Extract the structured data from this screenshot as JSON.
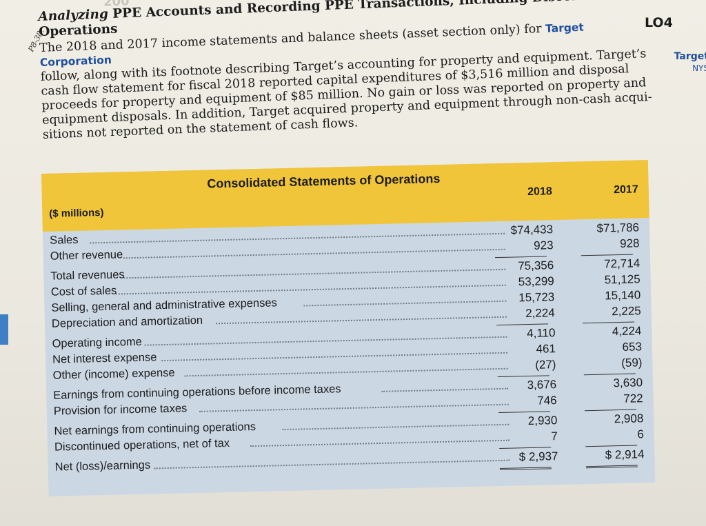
{
  "problem": {
    "number": "P8-38.",
    "heading_italic": "Analyzing",
    "heading_rest": "PPE Accounts and Recording PPE Transactions, Including Discontinued Operations",
    "lines": [
      "The 2018 and 2017 income statements and balance sheets (asset section only) for",
      "follow, along with its footnote describing Target’s accounting for property and equipment. Target’s",
      "cash flow statement for fiscal 2018 reported capital expenditures of $3,516 million and disposal",
      "proceeds for property and equipment of $85 million. No gain or loss was reported on property and",
      "equipment disposals. In addition, Target acquired property and equipment through non-cash acqui-",
      "sitions not reported on the statement of cash flows."
    ],
    "company": "Target Corporation",
    "learning_objective": "LO4",
    "side_tag": "Target",
    "side_exchange": "NYS"
  },
  "statement": {
    "title": "Consolidated Statements of Operations",
    "unit_label": "($ millions)",
    "columns": [
      "2018",
      "2017"
    ],
    "rows": [
      {
        "label": "Sales",
        "y2018": "$74,433",
        "y2017": "$71,786"
      },
      {
        "label": "Other revenue",
        "y2018": "923",
        "y2017": "928"
      },
      {
        "label": "Total revenues",
        "y2018": "75,356",
        "y2017": "72,714"
      },
      {
        "label": "Cost of sales",
        "y2018": "53,299",
        "y2017": "51,125"
      },
      {
        "label": "Selling, general and administrative expenses",
        "y2018": "15,723",
        "y2017": "15,140"
      },
      {
        "label": "Depreciation and amortization",
        "y2018": "2,224",
        "y2017": "2,225"
      },
      {
        "label": "Operating income",
        "y2018": "4,110",
        "y2017": "4,224"
      },
      {
        "label": "Net interest expense",
        "y2018": "461",
        "y2017": "653"
      },
      {
        "label": "Other (income) expense",
        "y2018": "(27)",
        "y2017": "(59)"
      },
      {
        "label": "Earnings from continuing operations before income taxes",
        "y2018": "3,676",
        "y2017": "3,630"
      },
      {
        "label": "Provision for income taxes",
        "y2018": "746",
        "y2017": "722"
      },
      {
        "label": "Net earnings from continuing operations",
        "y2018": "2,930",
        "y2017": "2,908"
      },
      {
        "label": "Discontinued operations, net of tax",
        "y2018": "7",
        "y2017": "6"
      },
      {
        "label": "Net (loss)/earnings",
        "y2018": "$ 2,937",
        "y2017": "$ 2,914"
      }
    ]
  },
  "colors": {
    "header_band": "#f0c53a",
    "table_bg": "#cbd7e3",
    "brand_blue": "#1f4f9c"
  }
}
